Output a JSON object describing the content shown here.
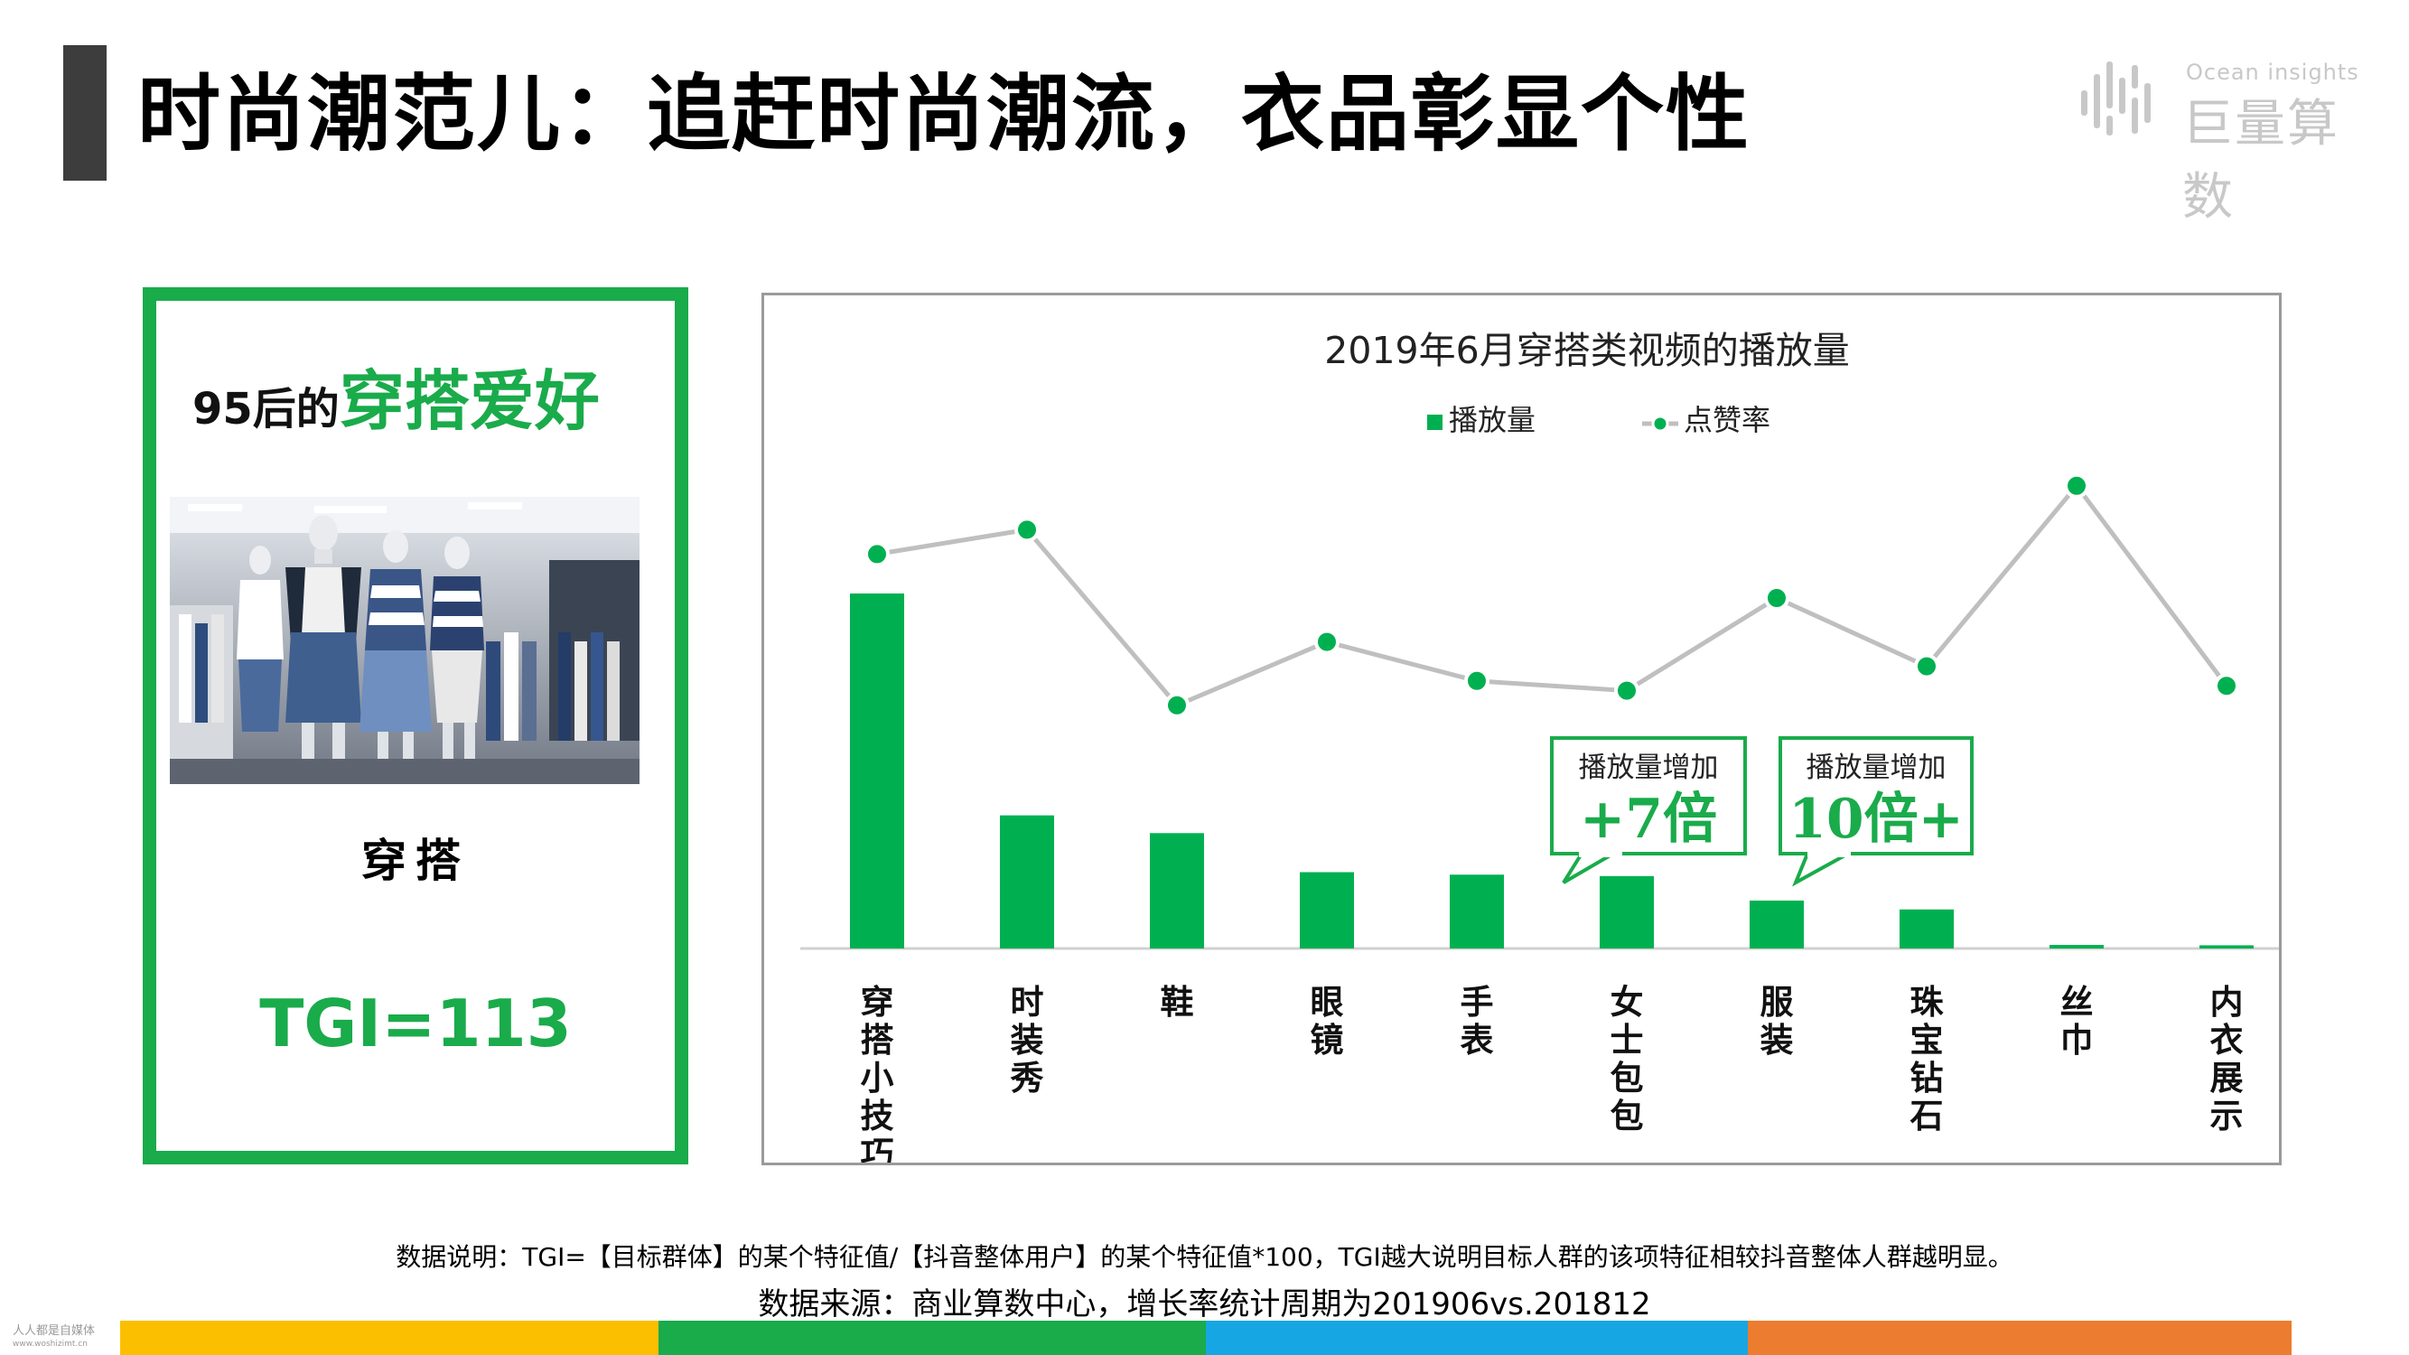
{
  "header": {
    "title": "时尚潮范儿：追赶时尚潮流，衣品彰显个性"
  },
  "logo": {
    "en": "Ocean insights",
    "cn": "巨量算数"
  },
  "left_panel": {
    "heading_small": "95后的",
    "heading_big": "穿搭爱好",
    "label": "穿搭",
    "tgi": "TGI=113"
  },
  "chart_data": {
    "type": "bar",
    "title": "2019年6月穿搭类视频的播放量",
    "categories": [
      "穿搭小技巧",
      "时装秀",
      "鞋",
      "眼镜",
      "手表",
      "女士包包",
      "服装",
      "珠宝钻石",
      "丝巾",
      "内衣展示"
    ],
    "series": [
      {
        "name": "播放量",
        "type": "bar",
        "color": "#00b050",
        "values": [
          100,
          37.5,
          32.5,
          21.5,
          20.8,
          20.4,
          13.5,
          11.0,
          1.0,
          0.9
        ]
      },
      {
        "name": "点赞率",
        "type": "line",
        "color": "#bfbfbf",
        "marker_color": "#00b050",
        "values": [
          74,
          79,
          43,
          56,
          48,
          46,
          65,
          51,
          88,
          47
        ]
      }
    ],
    "legend": "top-center",
    "grid": false,
    "annotations": [
      {
        "category": "女士包包",
        "line1": "播放量增加",
        "line2": "+7倍"
      },
      {
        "category": "服装",
        "line1": "播放量增加",
        "line2": "10倍+"
      }
    ]
  },
  "footer": {
    "note": "数据说明：TGI=【目标群体】的某个特征值/【抖音整体用户】的某个特征值*100，TGI越大说明目标人群的该项特征相较抖音整体人群越明显。",
    "source": "数据来源：商业算数中心，增长率统计周期为201906vs.201812",
    "watermark_line1": "人人都是自媒体",
    "watermark_line2": "www.woshizimt.cn"
  },
  "colors": {
    "green": "#1aab4b",
    "bar_green": "#00b050",
    "line_gray": "#bfbfbf",
    "strip": [
      "#fbbf00",
      "#1aab4b",
      "#17a6e4",
      "#ec7c30"
    ]
  },
  "icons": {
    "logo_mark": "bar-cluster-logo-icon",
    "photo": "mannequins-clothing-store-image"
  }
}
